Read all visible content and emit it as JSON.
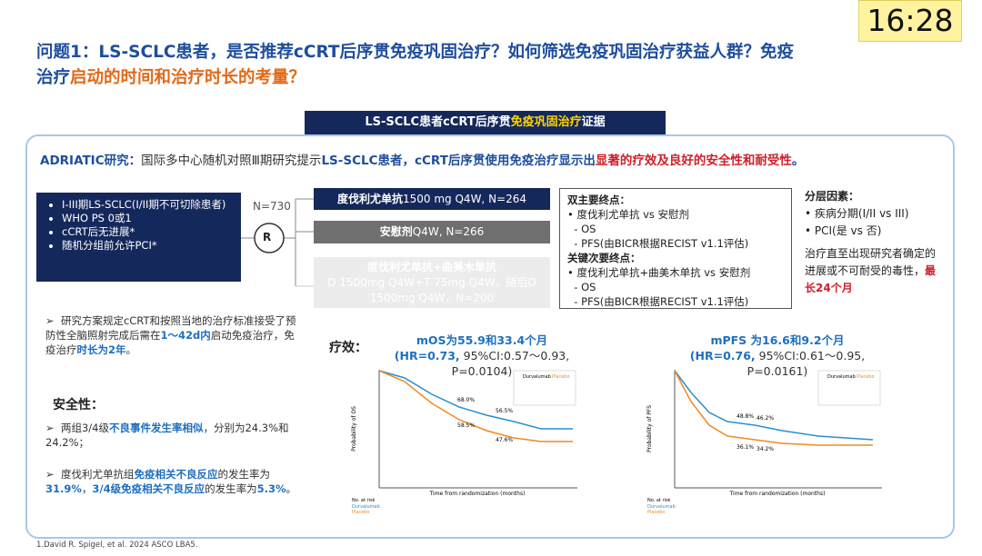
{
  "timer": "16:28",
  "header": {
    "title": [
      "问题1：LS-SCLC患者，是否推荐cCRT后序贯免疫巩固治疗？如何筛选免疫巩固治疗获益人群？免疫",
      "治疗",
      "启动的时间和治疗时长的考量？"
    ]
  },
  "banner": [
    "LS-SCLC患者cCRT后序贯",
    "免疫巩固治疗",
    "证据"
  ],
  "study": [
    "ADRIATIC研究：",
    "国际多中心随机对照Ⅲ期研究提示",
    "LS-SCLC患者，cCRT后序贯使用免疫治疗显示出",
    "显著的疗效及良好的安全性和耐受性",
    "。"
  ],
  "inclusion": [
    "I-III期LS-SCLC(I/II期不可切除患者)",
    "WHO PS 0或1",
    "cCRT后无进展*",
    "随机分组前允许PCI*"
  ],
  "randomization": {
    "n": "N=730",
    "label": "R"
  },
  "arms": [
    [
      "度伐利尤单抗",
      "1500 mg Q4W, N=264"
    ],
    [
      "安慰剂",
      "Q4W, N=266"
    ],
    [
      "度伐利尤单抗+曲美木单抗",
      "D 1500mg Q4W+T 75mg Q4W，随后D 1500mg Q4W，N=200"
    ]
  ],
  "endpoints": {
    "primary": "双主要终点：",
    "primary_items": [
      "度伐利尤单抗 vs 安慰剂",
      "OS",
      "PFS(由BICR根据RECIST v1.1评估)"
    ],
    "secondary": "关键次要终点：",
    "secondary_items": [
      "度伐利尤单抗+曲美木单抗 vs 安慰剂",
      "OS",
      "PFS(由BICR根据RECIST v1.1评估)"
    ]
  },
  "stratification": {
    "title": "分层因素：",
    "items": [
      "疾病分期(I/II vs III)",
      "PCI(是 vs 否)"
    ],
    "note": [
      "治疗直至出现研究者确定的进展或不可耐受的毒性，",
      "最长24个月"
    ]
  },
  "protocol": [
    "研究方案规定cCRT和按照当地的治疗标准接受了预防性全脑照射完成后需在",
    "1～42d内",
    "启动免疫治疗，免疫治疗",
    "时长为2年",
    "。"
  ],
  "safety": {
    "title": "安全性：",
    "items": [
      [
        "两组3/4级",
        "不良事件发生率相似",
        "，分别为24.3%和24.2%；"
      ],
      [
        "度伐利尤单抗组",
        "免疫相关不良反应",
        "的发生率为",
        "31.9%",
        "，",
        "3/4级免疫相关不良反应",
        "的发生率为",
        "5.3%",
        "。"
      ]
    ]
  },
  "efficacy": {
    "label": "疗效：",
    "os": {
      "title": "mOS为55.9和33.4个月",
      "hr": [
        "(HR=0.73,",
        " 95%CI:0.57～0.93, P=0.0104)"
      ],
      "y_axis": "Probability of OS",
      "x_axis": "Time from randomization (months)",
      "annotations": [
        "68.0%",
        "58.5%",
        "56.5%",
        "47.6%"
      ],
      "risk": "No. at risk",
      "legend": [
        "Durvalumab",
        "Placebo"
      ]
    },
    "pfs": {
      "title": "mPFS 为16.6和9.2个月",
      "hr": [
        "(HR=0.76,",
        " 95%CI:0.61～0.95, P=0.0161)"
      ],
      "y_axis": "Probability of PFS",
      "x_axis": "Time from randomization (months)",
      "annotations": [
        "48.8%",
        "46.2%",
        "36.1%",
        "34.2%"
      ],
      "risk": "No. at risk",
      "legend": [
        "Durvalumab",
        "Placebo"
      ]
    }
  },
  "footnote": "1.David R. Spigel, et al. 2024 ASCO LBA5."
}
